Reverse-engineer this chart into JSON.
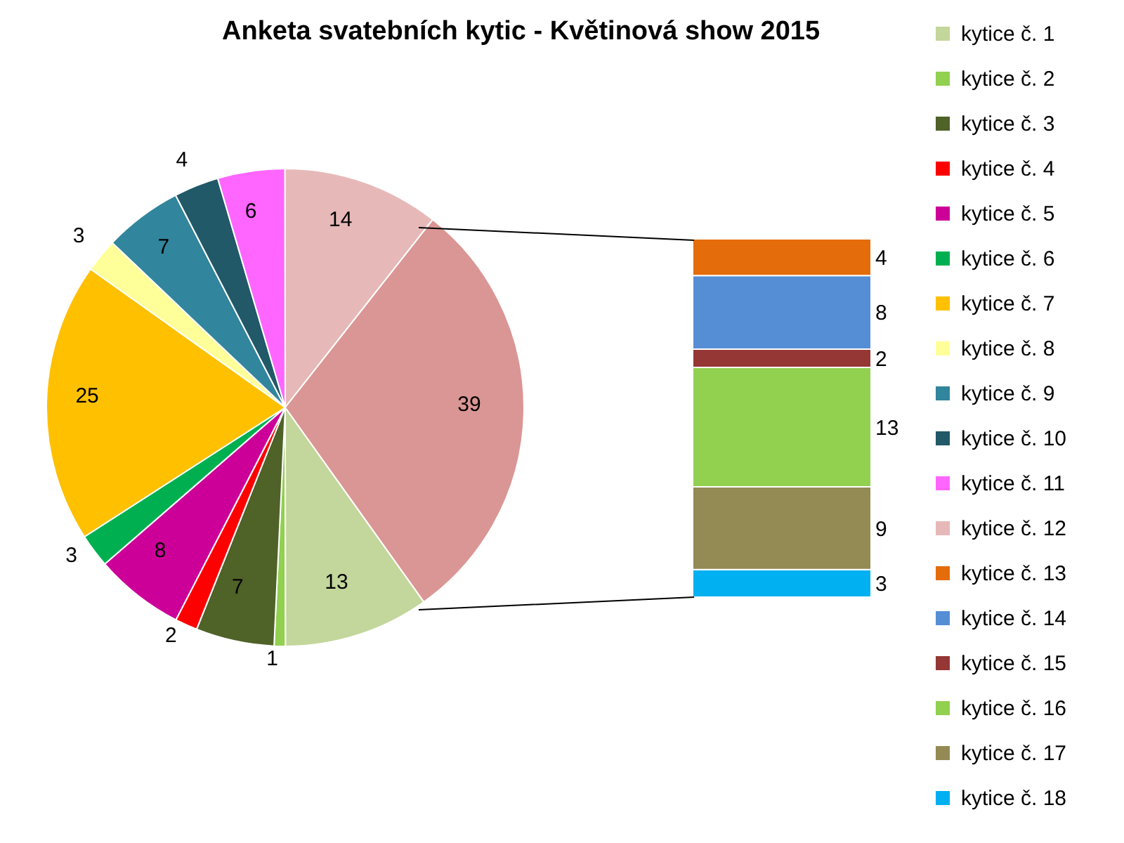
{
  "chart_data": [
    {
      "type": "pie",
      "title": "Anketa svatebních kytic - Květinová show 2015",
      "categories": [
        "kytice č. 1",
        "kytice č. 2",
        "kytice č. 3",
        "kytice č. 4",
        "kytice č. 5",
        "kytice č. 6",
        "kytice č. 7",
        "kytice č. 8",
        "kytice č. 9",
        "kytice č. 10",
        "kytice č. 11",
        "kytice č. 12",
        null
      ],
      "values": [
        13,
        1,
        7,
        2,
        8,
        3,
        25,
        3,
        7,
        4,
        6,
        14,
        39
      ],
      "colors": [
        "#c3d69b",
        "#92d050",
        "#4f6228",
        "#ff0000",
        "#cc0099",
        "#00b050",
        "#ffc000",
        "#ffff99",
        "#31859c",
        "#215968",
        "#ff66ff",
        "#e6b9b8",
        "#da9694"
      ],
      "data_labels": true,
      "legend": "right"
    },
    {
      "type": "bar",
      "stacked": true,
      "categories": [
        null
      ],
      "series": [
        {
          "name": "kytice č. 13",
          "color": "#e46c0a",
          "values": [
            4
          ]
        },
        {
          "name": "kytice č. 14",
          "color": "#558ed5",
          "values": [
            8
          ]
        },
        {
          "name": "kytice č. 15",
          "color": "#953735",
          "values": [
            2
          ]
        },
        {
          "name": "kytice č. 16",
          "color": "#92d050",
          "values": [
            13
          ]
        },
        {
          "name": "kytice č. 17",
          "color": "#948a54",
          "values": [
            9
          ]
        },
        {
          "name": "kytice č. 18",
          "color": "#00b0f0",
          "values": [
            3
          ]
        }
      ],
      "data_labels": true,
      "legend": "right"
    }
  ]
}
